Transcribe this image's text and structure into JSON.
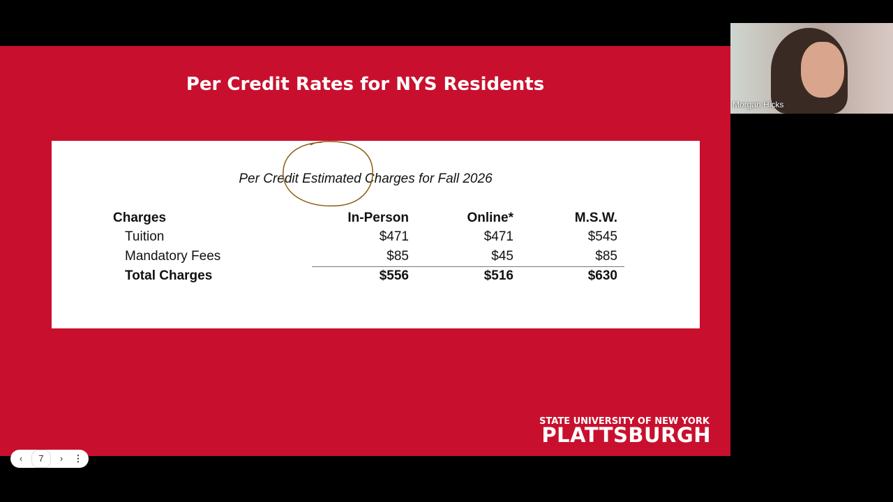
{
  "slide": {
    "title": "Per Credit Rates for NYS Residents",
    "table": {
      "caption": "Per Credit Estimated Charges for Fall 2026",
      "header": [
        "Charges",
        "In-Person",
        "Online*",
        "M.S.W."
      ],
      "rows": [
        [
          "Tuition",
          "$471",
          "$471",
          "$545"
        ],
        [
          "Mandatory Fees",
          "$85",
          "$45",
          "$85"
        ],
        [
          "Total Charges",
          "$556",
          "$516",
          "$630"
        ]
      ]
    },
    "logo": {
      "line1": "STATE UNIVERSITY OF NEW YORK",
      "line2": "PLATTSBURGH"
    }
  },
  "participant": {
    "name": "Morgan Hicks"
  },
  "toolbar": {
    "page": "7"
  }
}
